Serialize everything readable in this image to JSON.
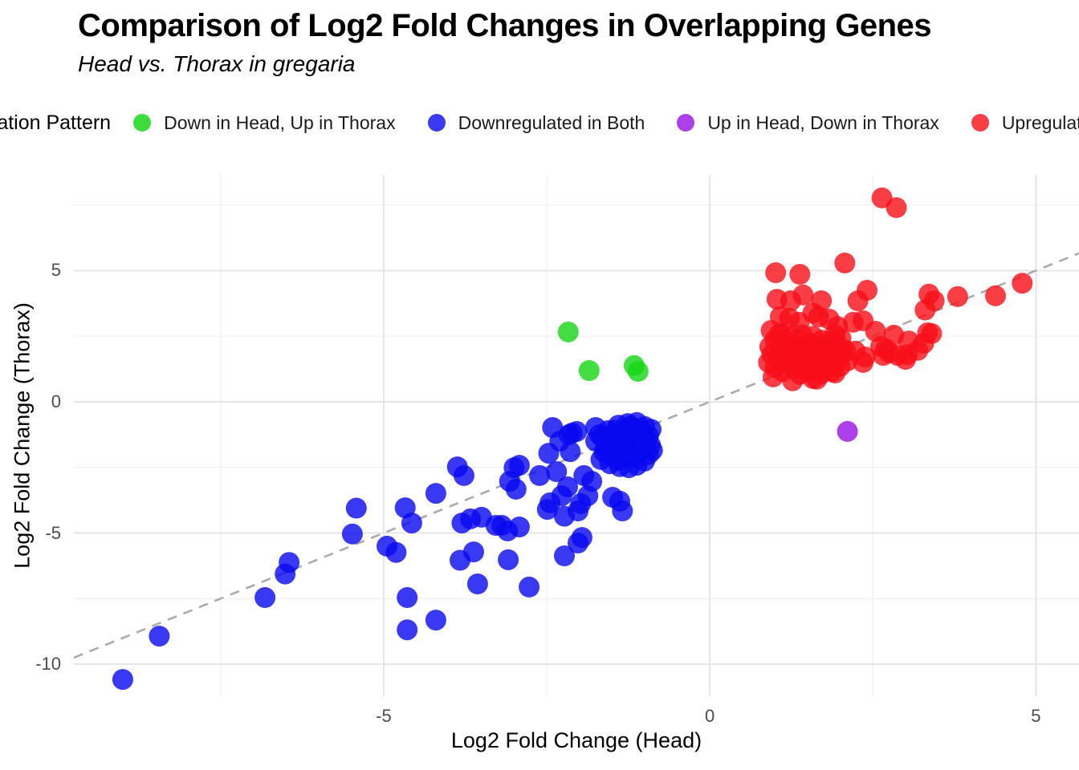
{
  "title": "Comparison of Log2 Fold Changes in Overlapping Genes",
  "subtitle": "Head vs. Thorax in gregaria",
  "legend": {
    "title": "Regulation Pattern",
    "items": [
      {
        "label": "Down in Head, Up in Thorax",
        "color": "#3ddc3d"
      },
      {
        "label": "Downregulated in Both",
        "color": "#3a3af0"
      },
      {
        "label": "Up in Head, Down in Thorax",
        "color": "#ab3fe9"
      },
      {
        "label": "Upregulated in Both",
        "color": "#f93e46"
      }
    ]
  },
  "chart_data": {
    "type": "scatter",
    "title": "Comparison of Log2 Fold Changes in Overlapping Genes",
    "subtitle": "Head vs. Thorax in gregaria",
    "xlabel": "Log2 Fold Change (Head)",
    "ylabel": "Log2 Fold Change (Thorax)",
    "xlim": [
      -9.75,
      5.66
    ],
    "ylim": [
      -11.22,
      8.65
    ],
    "x_major_ticks": [
      -5,
      0,
      5
    ],
    "x_minor_ticks": [
      -7.5,
      -2.5,
      2.5
    ],
    "y_major_ticks": [
      5,
      0,
      -5,
      -10
    ],
    "y_minor_ticks": [
      7.5,
      2.5,
      -2.5,
      -7.5
    ],
    "grid": true,
    "legend_position": "top",
    "point_alpha": 0.8,
    "point_radius_px": 13,
    "identity_line": {
      "style": "dashed",
      "color": "#ababab",
      "from": [
        -9.75,
        -9.75
      ],
      "to": [
        5.66,
        5.66
      ]
    },
    "series": [
      {
        "name": "Down in Head, Up in Thorax",
        "color": "#15d615",
        "points": [
          [
            -2.17,
            2.66
          ],
          [
            -1.85,
            1.19
          ],
          [
            -1.16,
            1.38
          ],
          [
            -1.1,
            1.16
          ]
        ]
      },
      {
        "name": "Downregulated in Both",
        "color": "#0808f0",
        "points": [
          [
            -9.0,
            -10.58
          ],
          [
            -8.44,
            -8.93
          ],
          [
            -6.82,
            -7.46
          ],
          [
            -6.51,
            -6.56
          ],
          [
            -6.45,
            -6.12
          ],
          [
            -5.48,
            -5.04
          ],
          [
            -5.42,
            -4.05
          ],
          [
            -4.95,
            -5.5
          ],
          [
            -4.81,
            -5.74
          ],
          [
            -4.67,
            -4.04
          ],
          [
            -4.64,
            -7.46
          ],
          [
            -4.64,
            -8.69
          ],
          [
            -4.57,
            -4.62
          ],
          [
            -4.2,
            -8.32
          ],
          [
            -4.2,
            -3.49
          ],
          [
            -3.87,
            -2.48
          ],
          [
            -3.83,
            -6.04
          ],
          [
            -3.8,
            -4.62
          ],
          [
            -3.77,
            -2.81
          ],
          [
            -3.67,
            -4.46
          ],
          [
            -3.62,
            -5.72
          ],
          [
            -3.56,
            -6.94
          ],
          [
            -3.5,
            -4.4
          ],
          [
            -3.28,
            -4.71
          ],
          [
            -3.19,
            -4.71
          ],
          [
            -3.1,
            -4.92
          ],
          [
            -3.09,
            -6.02
          ],
          [
            -3.07,
            -3.03
          ],
          [
            -3.0,
            -2.51
          ],
          [
            -2.97,
            -3.33
          ],
          [
            -2.92,
            -4.77
          ],
          [
            -2.92,
            -2.42
          ],
          [
            -2.77,
            -7.06
          ],
          [
            -2.61,
            -2.81
          ],
          [
            -2.49,
            -4.1
          ],
          [
            -2.47,
            -1.96
          ],
          [
            -2.45,
            -3.85
          ],
          [
            -2.41,
            -0.98
          ],
          [
            -2.35,
            -2.66
          ],
          [
            -2.3,
            -1.5
          ],
          [
            -2.27,
            -3.58
          ],
          [
            -2.23,
            -5.87
          ],
          [
            -2.23,
            -4.36
          ],
          [
            -2.18,
            -3.24
          ],
          [
            -2.16,
            -1.25
          ],
          [
            -2.14,
            -1.9
          ],
          [
            -2.11,
            -1.19
          ],
          [
            -2.04,
            -1.13
          ],
          [
            -2.02,
            -5.38
          ],
          [
            -2.02,
            -4.16
          ],
          [
            -1.98,
            -3.88
          ],
          [
            -1.96,
            -5.17
          ],
          [
            -1.93,
            -2.81
          ],
          [
            -1.87,
            -3.58
          ],
          [
            -1.81,
            -3.03
          ],
          [
            -1.49,
            -3.64
          ],
          [
            -1.38,
            -3.79
          ],
          [
            -1.34,
            -4.16
          ],
          [
            -1.75,
            -0.98
          ],
          [
            -1.69,
            -1.25
          ],
          [
            -1.56,
            -1.1
          ],
          [
            -1.4,
            -0.89
          ],
          [
            -1.26,
            -0.83
          ],
          [
            -1.12,
            -0.79
          ],
          [
            -1.0,
            -0.94
          ],
          [
            -0.94,
            -1.29
          ],
          [
            -0.91,
            -1.65
          ],
          [
            -0.94,
            -2.01
          ],
          [
            -1.0,
            -2.26
          ],
          [
            -1.12,
            -2.42
          ],
          [
            -1.24,
            -2.51
          ],
          [
            -1.38,
            -2.47
          ],
          [
            -1.53,
            -2.36
          ],
          [
            -1.67,
            -2.2
          ],
          [
            -1.75,
            -1.5
          ],
          [
            -1.6,
            -1.75
          ],
          [
            -1.45,
            -1.6
          ],
          [
            -1.3,
            -1.45
          ],
          [
            -1.15,
            -1.3
          ],
          [
            -1.05,
            -1.55
          ],
          [
            -1.2,
            -1.8
          ],
          [
            -1.35,
            -1.95
          ],
          [
            -1.5,
            -2.05
          ],
          [
            -1.62,
            -1.92
          ],
          [
            -1.48,
            -1.35
          ],
          [
            -1.33,
            -1.2
          ],
          [
            -1.18,
            -1.05
          ],
          [
            -1.08,
            -1.85
          ],
          [
            -1.25,
            -2.1
          ],
          [
            -1.42,
            -2.22
          ],
          [
            -1.58,
            -1.62
          ],
          [
            -1.28,
            -1.62
          ],
          [
            -1.13,
            -2.15
          ],
          [
            -0.98,
            -1.45
          ],
          [
            -1.05,
            -1.1
          ],
          [
            -1.45,
            -1.08
          ],
          [
            -1.65,
            -1.35
          ],
          [
            -1.22,
            -0.92
          ],
          [
            -0.9,
            -1.05
          ],
          [
            -0.88,
            -1.85
          ],
          [
            -1.02,
            -1.7
          ],
          [
            -1.35,
            -1.7
          ],
          [
            -1.52,
            -1.85
          ]
        ]
      },
      {
        "name": "Up in Head, Down in Thorax",
        "color": "#970fe3",
        "points": [
          [
            2.11,
            -1.13
          ]
        ]
      },
      {
        "name": "Upregulated in Both",
        "color": "#f70e18",
        "points": [
          [
            1.01,
            4.92
          ],
          [
            1.38,
            4.86
          ],
          [
            2.07,
            5.29
          ],
          [
            2.64,
            7.77
          ],
          [
            2.86,
            7.4
          ],
          [
            1.03,
            3.91
          ],
          [
            1.24,
            3.85
          ],
          [
            1.43,
            4.07
          ],
          [
            1.71,
            3.85
          ],
          [
            2.27,
            3.85
          ],
          [
            2.41,
            4.25
          ],
          [
            3.36,
            4.1
          ],
          [
            3.44,
            3.85
          ],
          [
            3.8,
            4.01
          ],
          [
            4.38,
            4.04
          ],
          [
            4.79,
            4.52
          ],
          [
            1.08,
            3.24
          ],
          [
            1.22,
            3.18
          ],
          [
            1.37,
            3.03
          ],
          [
            1.58,
            3.39
          ],
          [
            1.67,
            3.24
          ],
          [
            1.83,
            3.15
          ],
          [
            1.92,
            2.57
          ],
          [
            1.96,
            2.87
          ],
          [
            2.01,
            2.42
          ],
          [
            2.2,
            3.03
          ],
          [
            2.35,
            3.09
          ],
          [
            3.3,
            3.5
          ],
          [
            2.54,
            2.69
          ],
          [
            2.62,
            2.11
          ],
          [
            2.7,
            2.02
          ],
          [
            2.75,
            1.87
          ],
          [
            2.82,
            2.54
          ],
          [
            2.88,
            1.77
          ],
          [
            3.0,
            1.62
          ],
          [
            3.03,
            1.8
          ],
          [
            3.05,
            2.32
          ],
          [
            3.19,
            1.96
          ],
          [
            3.28,
            2.23
          ],
          [
            3.34,
            2.63
          ],
          [
            3.4,
            2.6
          ],
          [
            2.08,
            1.96
          ],
          [
            2.11,
            1.56
          ],
          [
            2.23,
            1.93
          ],
          [
            2.35,
            1.5
          ],
          [
            2.38,
            1.71
          ],
          [
            2.66,
            1.77
          ],
          [
            0.97,
            0.95
          ],
          [
            1.27,
            0.8
          ],
          [
            1.64,
            0.86
          ],
          [
            1.88,
            1.16
          ],
          [
            1.58,
            0.89
          ],
          [
            1.9,
            1.32
          ],
          [
            2.02,
            1.8
          ],
          [
            0.94,
            2.72
          ],
          [
            1.06,
            2.57
          ],
          [
            0.9,
            1.5
          ],
          [
            0.92,
            2.1
          ],
          [
            0.95,
            1.8
          ],
          [
            1.0,
            1.3
          ],
          [
            1.0,
            2.35
          ],
          [
            1.05,
            1.6
          ],
          [
            1.08,
            1.95
          ],
          [
            1.1,
            2.6
          ],
          [
            1.12,
            1.15
          ],
          [
            1.15,
            1.75
          ],
          [
            1.18,
            2.2
          ],
          [
            1.2,
            1.45
          ],
          [
            1.22,
            2.45
          ],
          [
            1.25,
            1.9
          ],
          [
            1.28,
            1.25
          ],
          [
            1.3,
            2.1
          ],
          [
            1.32,
            1.6
          ],
          [
            1.35,
            2.35
          ],
          [
            1.38,
            1.05
          ],
          [
            1.4,
            1.8
          ],
          [
            1.42,
            2.55
          ],
          [
            1.45,
            1.4
          ],
          [
            1.48,
            2.0
          ],
          [
            1.5,
            1.15
          ],
          [
            1.52,
            2.25
          ],
          [
            1.55,
            1.65
          ],
          [
            1.58,
            2.5
          ],
          [
            1.6,
            1.3
          ],
          [
            1.62,
            1.95
          ],
          [
            1.65,
            2.15
          ],
          [
            1.68,
            1.5
          ],
          [
            1.7,
            1.05
          ],
          [
            1.72,
            2.35
          ],
          [
            1.75,
            1.75
          ],
          [
            1.78,
            1.25
          ],
          [
            1.8,
            2.05
          ],
          [
            1.82,
            1.55
          ],
          [
            1.85,
            2.3
          ],
          [
            1.88,
            1.4
          ],
          [
            1.9,
            1.9
          ],
          [
            1.92,
            1.1
          ],
          [
            1.95,
            2.2
          ],
          [
            1.98,
            1.6
          ],
          [
            2.0,
            1.35
          ],
          [
            2.02,
            2.0
          ],
          [
            1.35,
            1.72
          ],
          [
            1.47,
            1.62
          ],
          [
            1.52,
            1.38
          ]
        ]
      }
    ]
  }
}
